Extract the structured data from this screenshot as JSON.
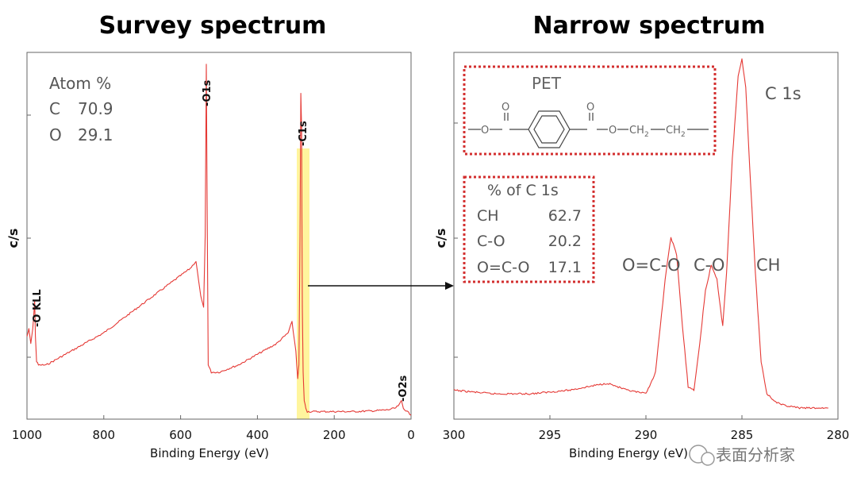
{
  "chart_data": [
    {
      "type": "line",
      "title": "Survey spectrum",
      "xlabel": "Binding Energy (eV)",
      "ylabel": "c/s",
      "xlim": [
        1000,
        0
      ],
      "x_ticks": [
        "1000",
        "800",
        "600",
        "400",
        "200",
        "0"
      ],
      "series": [
        {
          "values_x": [
            1000,
            995,
            990,
            985,
            980,
            978,
            975,
            970,
            960,
            950,
            900,
            850,
            800,
            750,
            700,
            650,
            600,
            575,
            560,
            550,
            545,
            540,
            536,
            533,
            531,
            528,
            520,
            500,
            450,
            400,
            350,
            320,
            310,
            300,
            295,
            292,
            289,
            287,
            285,
            283,
            281,
            278,
            274,
            270,
            250,
            200,
            150,
            100,
            60,
            40,
            30,
            25,
            20,
            10,
            0
          ],
          "values_y": [
            0.22,
            0.24,
            0.2,
            0.24,
            0.32,
            0.22,
            0.15,
            0.14,
            0.14,
            0.14,
            0.17,
            0.2,
            0.23,
            0.27,
            0.31,
            0.35,
            0.39,
            0.41,
            0.43,
            0.35,
            0.32,
            0.3,
            0.5,
            0.98,
            0.6,
            0.14,
            0.12,
            0.12,
            0.14,
            0.17,
            0.2,
            0.23,
            0.26,
            0.18,
            0.1,
            0.14,
            0.5,
            0.9,
            0.8,
            0.3,
            0.12,
            0.04,
            0.02,
            0.01,
            0.01,
            0.01,
            0.01,
            0.012,
            0.015,
            0.02,
            0.03,
            0.04,
            0.02,
            0.01,
            0.0
          ]
        }
      ],
      "annotations": {
        "peaks": [
          {
            "label": "-O1s",
            "x": 531
          },
          {
            "label": "-C1s",
            "x": 285
          },
          {
            "label": "-O KLL",
            "x": 978
          },
          {
            "label": "-O2s",
            "x": 25
          }
        ],
        "atom_table": {
          "header": "Atom %",
          "rows": [
            {
              "el": "C",
              "val": "70.9"
            },
            {
              "el": "O",
              "val": "29.1"
            }
          ]
        },
        "highlight": {
          "from_x": 310,
          "to_x": 265,
          "color": "#fff59d"
        }
      }
    },
    {
      "type": "line",
      "title": "Narrow spectrum",
      "xlabel": "Binding Energy (eV)",
      "ylabel": "c/s",
      "xlim": [
        300,
        280
      ],
      "x_ticks": [
        "300",
        "295",
        "290",
        "285",
        "280"
      ],
      "series": [
        {
          "values_x": [
            300,
            298,
            296,
            294,
            292,
            291,
            290,
            289.5,
            289,
            288.7,
            288.4,
            288.1,
            287.8,
            287.5,
            287.2,
            286.9,
            286.6,
            286.3,
            286.0,
            285.8,
            285.5,
            285.2,
            285.0,
            284.8,
            284.6,
            284.3,
            284.0,
            283.7,
            283.3,
            283.0,
            282.0,
            281.0,
            280.5
          ],
          "values_y": [
            0.07,
            0.06,
            0.06,
            0.07,
            0.09,
            0.07,
            0.06,
            0.12,
            0.38,
            0.5,
            0.45,
            0.25,
            0.08,
            0.07,
            0.2,
            0.35,
            0.42,
            0.38,
            0.25,
            0.4,
            0.72,
            0.95,
            1.0,
            0.92,
            0.7,
            0.4,
            0.15,
            0.06,
            0.04,
            0.03,
            0.02,
            0.02,
            0.02
          ]
        }
      ],
      "annotations": {
        "peak_labels": [
          "O=C-O",
          "C-O",
          "CH"
        ],
        "corner_label": "C 1s",
        "pet": {
          "title": "PET",
          "formula_left": "O",
          "formula_ch2a": "CH",
          "formula_ch2b": "CH",
          "subscript": "2"
        },
        "percent_table": {
          "header": "% of C 1s",
          "rows": [
            {
              "name": "CH",
              "val": "62.7"
            },
            {
              "name": "C-O",
              "val": "20.2"
            },
            {
              "name": "O=C-O",
              "val": "17.1"
            }
          ]
        }
      }
    }
  ],
  "watermark": "表面分析家",
  "colors": {
    "trace": "#e53935",
    "highlight": "#fff59d",
    "dotted": "#d32f2f"
  }
}
